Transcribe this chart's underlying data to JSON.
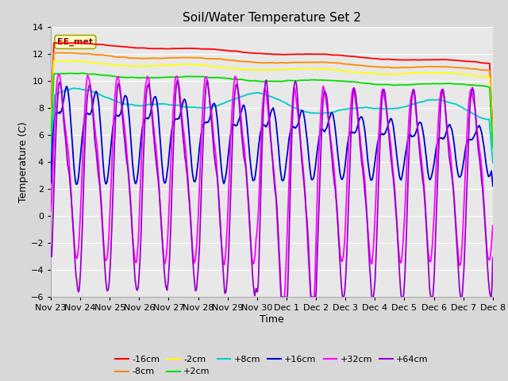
{
  "title": "Soil/Water Temperature Set 2",
  "xlabel": "Time",
  "ylabel": "Temperature (C)",
  "ylim": [
    -6,
    14
  ],
  "fig_bg": "#d8d8d8",
  "plot_bg": "#e8e8e8",
  "annotation_text": "EE_met",
  "annotation_box_facecolor": "#ffffcc",
  "annotation_box_edgecolor": "#aaaa00",
  "tick_labels": [
    "Nov 23",
    "Nov 24",
    "Nov 25",
    "Nov 26",
    "Nov 27",
    "Nov 28",
    "Nov 29",
    "Nov 30",
    "Dec 1",
    "Dec 2",
    "Dec 3",
    "Dec 4",
    "Dec 5",
    "Dec 6",
    "Dec 7",
    "Dec 8"
  ],
  "series_colors": {
    "-16cm": "#ff0000",
    "-8cm": "#ff8800",
    "-2cm": "#ffff00",
    "+2cm": "#00dd00",
    "+8cm": "#00cccc",
    "+16cm": "#0000cc",
    "+32cm": "#ff00ff",
    "+64cm": "#9900cc"
  },
  "grid_color": "#ffffff",
  "yticks": [
    -6,
    -4,
    -2,
    0,
    2,
    4,
    6,
    8,
    10,
    12,
    14
  ],
  "legend_row1": [
    "-16cm",
    "-8cm",
    "-2cm",
    "+2cm",
    "+8cm",
    "+16cm"
  ],
  "legend_row2": [
    "+32cm",
    "+64cm"
  ]
}
